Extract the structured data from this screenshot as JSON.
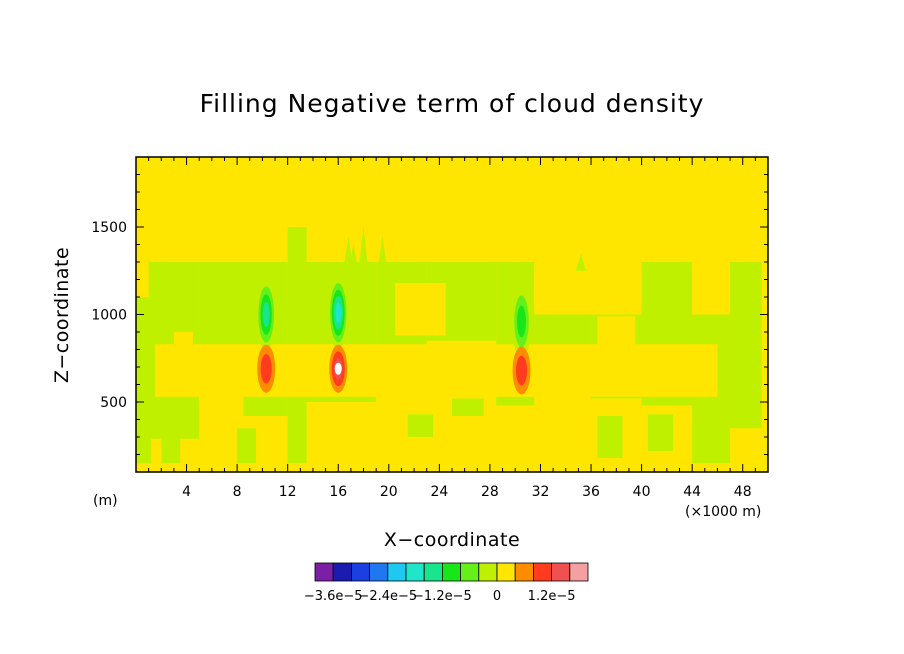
{
  "chart_data": {
    "type": "heatmap",
    "title": "Filling Negative term of cloud density",
    "xlabel": "X−coordinate",
    "ylabel": "Z−coordinate",
    "x_unit_label": "(m)",
    "x_scale_label": "(×1000 m)",
    "xlim": [
      0,
      50
    ],
    "ylim": [
      100,
      1900
    ],
    "x_ticks": [
      "4",
      "8",
      "12",
      "16",
      "20",
      "24",
      "28",
      "32",
      "36",
      "40",
      "44",
      "48"
    ],
    "x_tick_values": [
      4,
      8,
      12,
      16,
      20,
      24,
      28,
      32,
      36,
      40,
      44,
      48
    ],
    "y_ticks": [
      "500",
      "1000",
      "1500"
    ],
    "y_tick_values": [
      500,
      1000,
      1500
    ],
    "colorbar": {
      "labels": [
        "−3.6e−5",
        "−2.4e−5",
        "−1.2e−5",
        "0",
        "1.2e−5"
      ],
      "label_values": [
        -3.6e-05,
        -2.4e-05,
        -1.2e-05,
        0,
        1.2e-05
      ],
      "colors": [
        "#7a1fa6",
        "#1b1bb0",
        "#1b3fe0",
        "#1f78f0",
        "#1fc8f0",
        "#1fe6c8",
        "#19e68c",
        "#19e619",
        "#66f019",
        "#bff000",
        "#ffe600",
        "#ff8c00",
        "#ff3c1e",
        "#f05050",
        "#f5a0a0"
      ]
    },
    "background_level_color": "#ffe600",
    "features": [
      {
        "x": 10.3,
        "z": 1000,
        "polarity": "negative",
        "peak": -1.2e-05
      },
      {
        "x": 10.3,
        "z": 690,
        "polarity": "positive",
        "peak": 1.2e-05
      },
      {
        "x": 16.0,
        "z": 1010,
        "polarity": "negative",
        "peak": -2e-05
      },
      {
        "x": 16.0,
        "z": 690,
        "polarity": "positive",
        "peak": 1.8e-05
      },
      {
        "x": 30.5,
        "z": 960,
        "polarity": "negative",
        "peak": -8e-06
      },
      {
        "x": 30.5,
        "z": 680,
        "polarity": "positive",
        "peak": 1.2e-05
      }
    ]
  }
}
